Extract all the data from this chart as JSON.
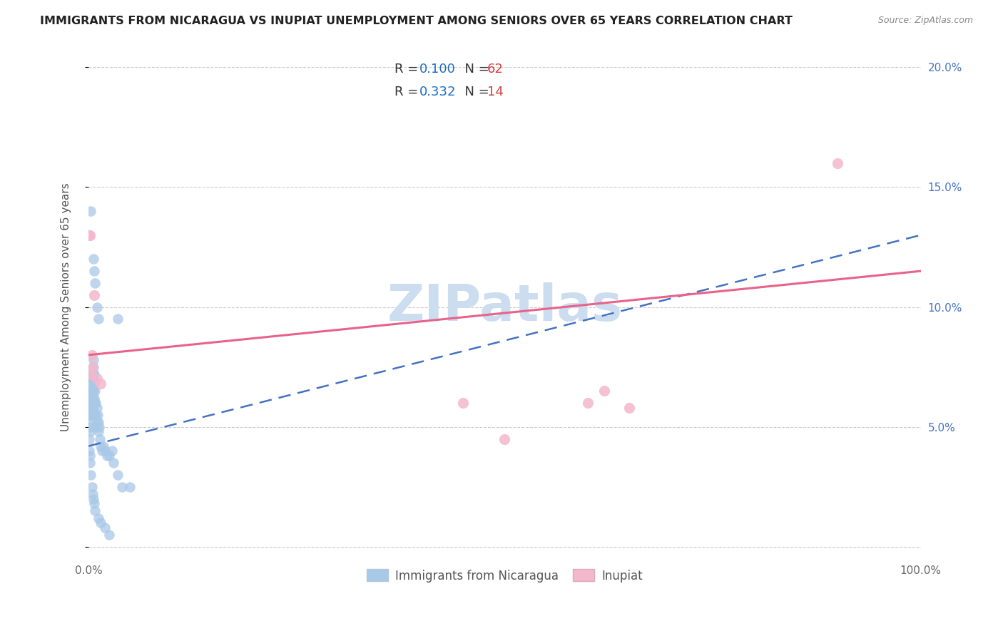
{
  "title": "IMMIGRANTS FROM NICARAGUA VS INUPIAT UNEMPLOYMENT AMONG SENIORS OVER 65 YEARS CORRELATION CHART",
  "source": "Source: ZipAtlas.com",
  "ylabel": "Unemployment Among Seniors over 65 years",
  "xlim": [
    0,
    1.0
  ],
  "ylim": [
    -0.005,
    0.205
  ],
  "yticks": [
    0.0,
    0.05,
    0.1,
    0.15,
    0.2
  ],
  "yticklabels_right": [
    "",
    "5.0%",
    "10.0%",
    "15.0%",
    "20.0%"
  ],
  "blue_fill": "#a8c8e8",
  "pink_fill": "#f4b8cc",
  "blue_edge": "#7aafd4",
  "pink_edge": "#e890b0",
  "blue_line_color": "#4472c4",
  "pink_line_color": "#e8628a",
  "r_blue": 0.1,
  "n_blue": 62,
  "r_pink": 0.332,
  "n_pink": 14,
  "legend_r_color": "#1a6fc4",
  "legend_n_color": "#d04040",
  "watermark_color": "#ccddef",
  "grid_color": "#cccccc",
  "blue_scatter_x": [
    0.0008,
    0.001,
    0.001,
    0.0012,
    0.0015,
    0.0015,
    0.0018,
    0.002,
    0.002,
    0.002,
    0.002,
    0.002,
    0.002,
    0.003,
    0.003,
    0.003,
    0.003,
    0.003,
    0.003,
    0.003,
    0.004,
    0.004,
    0.004,
    0.004,
    0.005,
    0.005,
    0.005,
    0.005,
    0.005,
    0.005,
    0.006,
    0.006,
    0.006,
    0.006,
    0.007,
    0.007,
    0.007,
    0.008,
    0.008,
    0.008,
    0.009,
    0.009,
    0.009,
    0.01,
    0.01,
    0.011,
    0.012,
    0.012,
    0.013,
    0.014,
    0.015,
    0.016,
    0.018,
    0.02,
    0.022,
    0.025,
    0.028,
    0.03,
    0.035,
    0.04,
    0.05
  ],
  "blue_scatter_y": [
    0.055,
    0.065,
    0.062,
    0.055,
    0.06,
    0.068,
    0.05,
    0.048,
    0.065,
    0.058,
    0.052,
    0.06,
    0.055,
    0.058,
    0.063,
    0.07,
    0.072,
    0.068,
    0.06,
    0.055,
    0.065,
    0.062,
    0.058,
    0.055,
    0.072,
    0.07,
    0.065,
    0.058,
    0.062,
    0.055,
    0.078,
    0.075,
    0.07,
    0.065,
    0.072,
    0.068,
    0.062,
    0.065,
    0.06,
    0.055,
    0.06,
    0.055,
    0.05,
    0.058,
    0.052,
    0.055,
    0.048,
    0.052,
    0.05,
    0.045,
    0.042,
    0.04,
    0.042,
    0.04,
    0.038,
    0.038,
    0.04,
    0.035,
    0.03,
    0.025,
    0.025
  ],
  "blue_outlier_x": [
    0.001,
    0.001,
    0.002,
    0.002,
    0.003,
    0.004,
    0.005,
    0.006,
    0.007,
    0.008,
    0.012,
    0.015,
    0.02,
    0.025
  ],
  "blue_outlier_y": [
    0.045,
    0.04,
    0.038,
    0.035,
    0.03,
    0.025,
    0.022,
    0.02,
    0.018,
    0.015,
    0.012,
    0.01,
    0.008,
    0.005
  ],
  "blue_high_x": [
    0.003,
    0.006,
    0.007,
    0.008,
    0.01,
    0.012,
    0.035
  ],
  "blue_high_y": [
    0.14,
    0.12,
    0.115,
    0.11,
    0.1,
    0.095,
    0.095
  ],
  "pink_scatter_x": [
    0.001,
    0.002,
    0.003,
    0.004,
    0.005,
    0.007,
    0.01,
    0.015,
    0.45,
    0.5,
    0.6,
    0.62,
    0.65,
    0.9
  ],
  "pink_scatter_y": [
    0.13,
    0.13,
    0.072,
    0.08,
    0.075,
    0.105,
    0.07,
    0.068,
    0.06,
    0.045,
    0.06,
    0.065,
    0.058,
    0.16
  ],
  "blue_line_x0": 0.0,
  "blue_line_x1": 1.0,
  "blue_line_y0": 0.042,
  "blue_line_y1": 0.13,
  "pink_line_x0": 0.0,
  "pink_line_x1": 1.0,
  "pink_line_y0": 0.08,
  "pink_line_y1": 0.115
}
